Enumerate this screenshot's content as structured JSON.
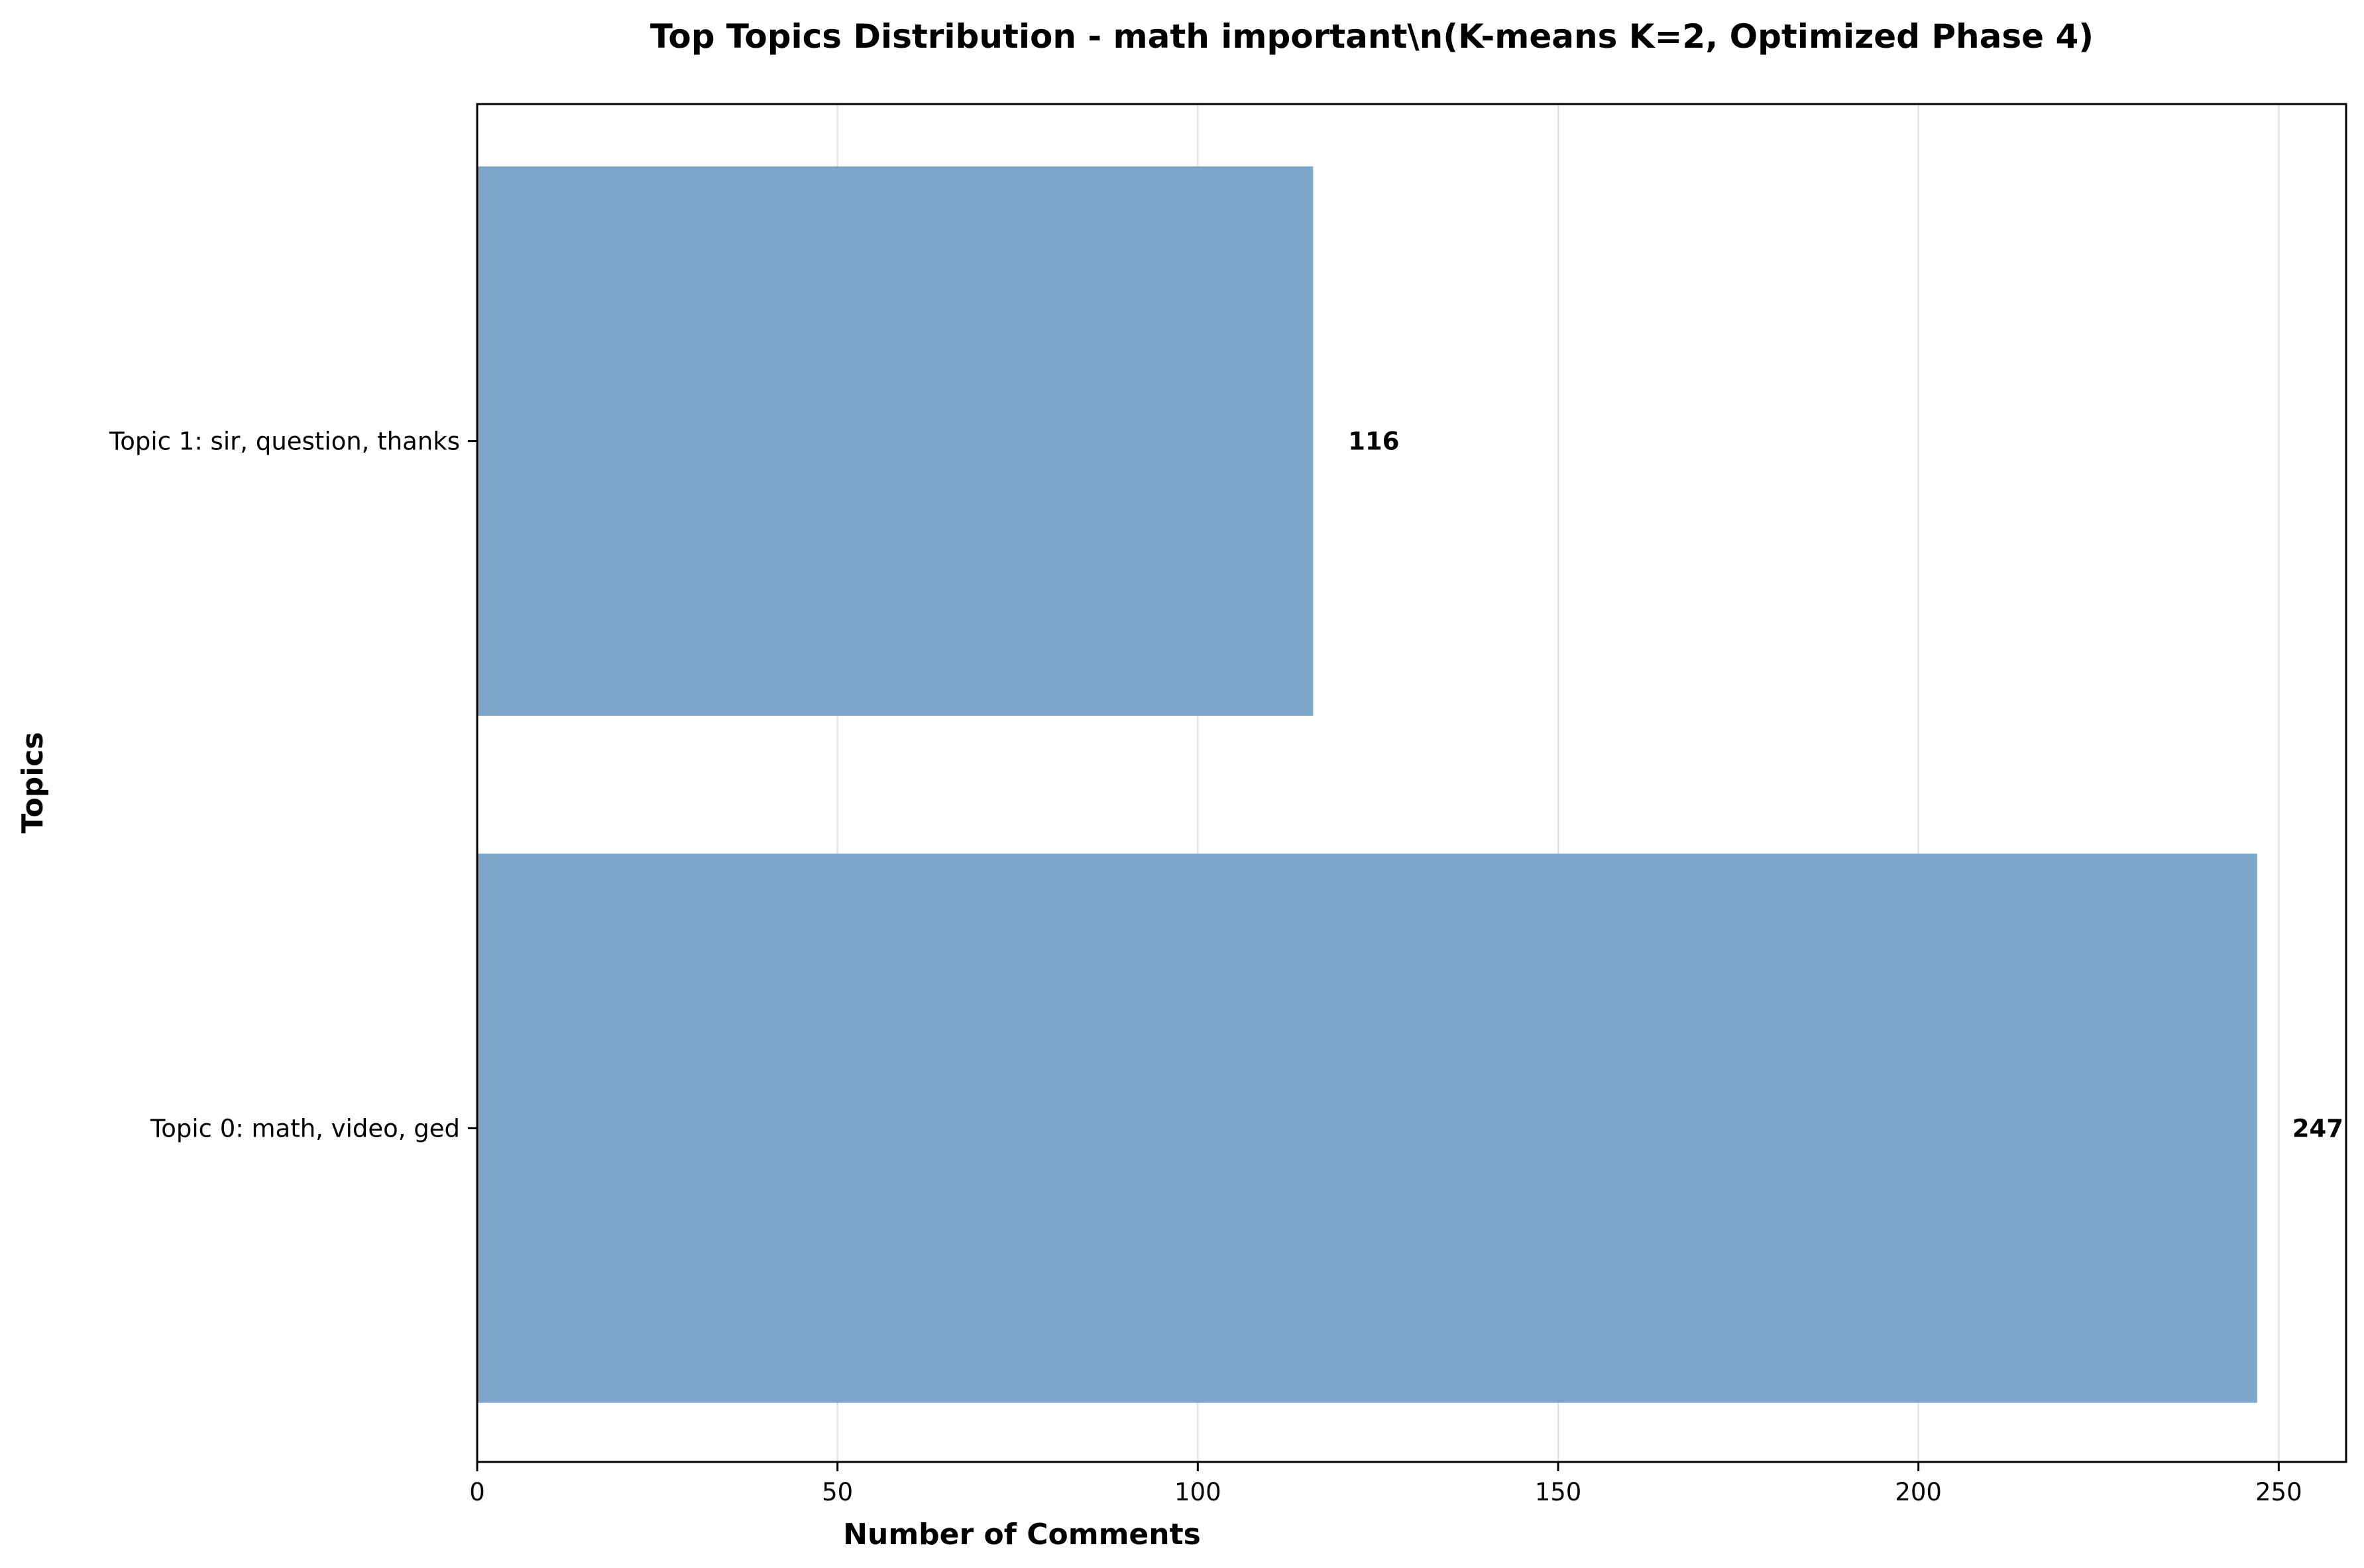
{
  "chart_data": {
    "type": "bar",
    "orientation": "horizontal",
    "title": "Top Topics Distribution - math important\\n(K-means K=2, Optimized Phase 4)",
    "xlabel": "Number of Comments",
    "ylabel": "Topics",
    "categories": [
      "Topic 0: math, video, ged",
      "Topic 1: sir, question, thanks"
    ],
    "values": [
      247,
      116
    ],
    "data_labels": [
      "247",
      "116"
    ],
    "xlim": [
      0,
      259.35
    ],
    "xticks": [
      0,
      50,
      100,
      150,
      200,
      250
    ],
    "xtick_labels": [
      "0",
      "50",
      "100",
      "150",
      "200",
      "250"
    ],
    "grid": "vertical",
    "bar_color": "#7ea6ca",
    "legend": "none"
  }
}
